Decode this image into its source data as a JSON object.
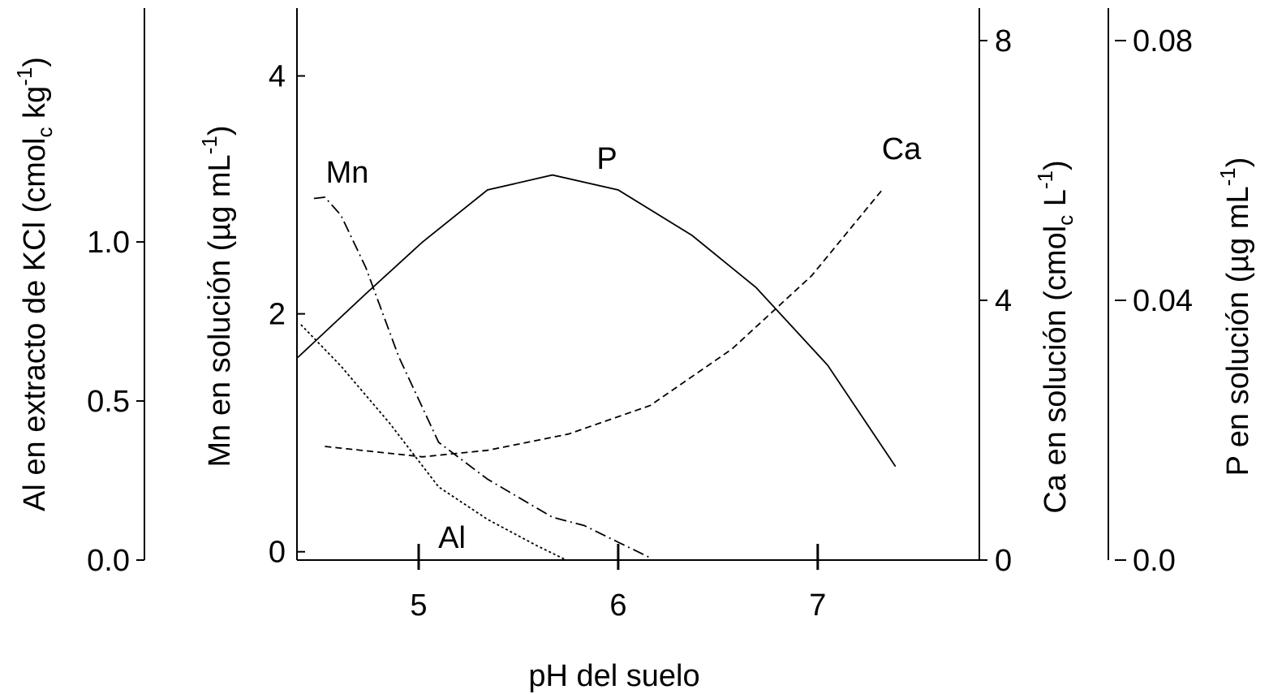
{
  "chart_data": {
    "type": "line",
    "xlabel": "pH del suelo",
    "xlim": [
      4.39,
      7.81
    ],
    "xticks": [
      5,
      6,
      7
    ],
    "axes": [
      {
        "label": [
          {
            "text": "Al en extracto de KCl (cmol"
          },
          {
            "text": "c",
            "shift": "sub"
          },
          {
            "text": " kg"
          },
          {
            "text": "-1",
            "shift": "sup"
          },
          {
            "text": ")"
          }
        ],
        "lim": [
          0,
          1.735
        ],
        "ticks": [
          {
            "value": 0,
            "label": "0.0"
          },
          0.5,
          {
            "value": 1,
            "label": "1.0"
          }
        ]
      },
      {
        "label": [
          {
            "text": "Mn en solución  (µg  mL"
          },
          {
            "text": "-1",
            "shift": "sup"
          },
          {
            "text": ")"
          }
        ],
        "lim": [
          -0.07,
          4.57
        ],
        "ticks": [
          0,
          2,
          4
        ]
      },
      {
        "label": [
          {
            "text": "Ca en solución (cmol"
          },
          {
            "text": "c",
            "shift": "sub"
          },
          {
            "text": "  L"
          },
          {
            "text": "-1",
            "shift": "sup"
          },
          {
            "text": ")"
          }
        ],
        "lim": [
          0,
          8.5
        ],
        "ticks": [
          0,
          4,
          8
        ]
      },
      {
        "label": [
          {
            "text": "P en solución (µg  mL"
          },
          {
            "text": "-1",
            "shift": "sup"
          },
          {
            "text": ")"
          }
        ],
        "lim": [
          0,
          0.085
        ],
        "ticks": [
          {
            "value": 0,
            "label": "0.0"
          },
          0.04,
          0.08
        ]
      }
    ],
    "series": [
      {
        "name": "Mn",
        "axis": 1,
        "color": "#000000",
        "dash": "dashdot",
        "x": [
          4.475,
          4.53,
          4.61,
          4.735,
          4.9,
          5.1,
          5.345,
          5.67,
          5.83,
          6.0,
          6.16
        ],
        "values": [
          2.97,
          2.98,
          2.83,
          2.39,
          1.64,
          0.92,
          0.61,
          0.29,
          0.22,
          0.08,
          -0.05
        ]
      },
      {
        "name": "P",
        "axis": 3,
        "color": "#000000",
        "dash": "solid",
        "x": [
          4.394,
          4.735,
          5.02,
          5.345,
          5.67,
          6.0,
          6.37,
          6.69,
          7.05,
          7.39
        ],
        "values": [
          0.0312,
          0.041,
          0.049,
          0.057,
          0.0593,
          0.057,
          0.05,
          0.042,
          0.03,
          0.0144
        ]
      },
      {
        "name": "Ca",
        "axis": 2,
        "color": "#000000",
        "dash": "dashed",
        "x": [
          4.53,
          5.02,
          5.345,
          5.75,
          6.16,
          6.57,
          6.97,
          7.32
        ],
        "values": [
          1.75,
          1.59,
          1.69,
          1.94,
          2.38,
          3.25,
          4.38,
          5.69
        ]
      },
      {
        "name": "Al",
        "axis": 0,
        "color": "#000000",
        "dash": "dotted",
        "x": [
          4.41,
          4.61,
          4.855,
          5.1,
          5.345,
          5.59,
          5.74
        ],
        "values": [
          0.74,
          0.61,
          0.43,
          0.23,
          0.128,
          0.046,
          0
        ]
      }
    ]
  }
}
